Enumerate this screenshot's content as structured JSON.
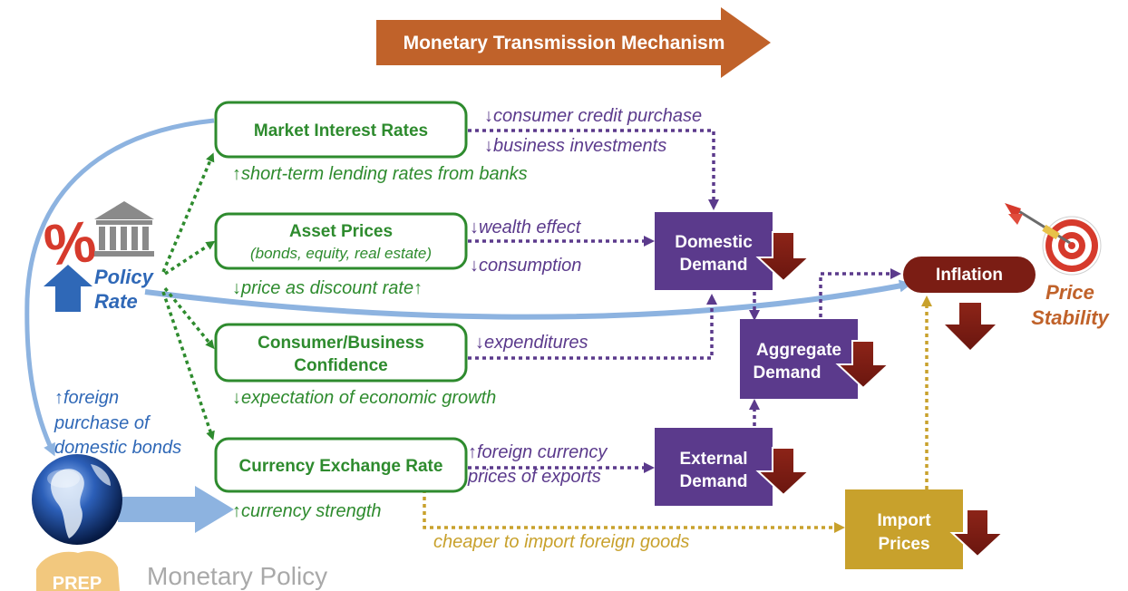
{
  "title": "Monetary Transmission Mechanism",
  "policy": {
    "symbol": "%",
    "line1": "Policy",
    "line2": "Rate"
  },
  "channels": {
    "market_interest": "Market Interest Rates",
    "asset_prices": "Asset Prices",
    "asset_prices_sub": "(bonds, equity, real estate)",
    "confidence_line1": "Consumer/Business",
    "confidence_line2": "Confidence",
    "exchange_rate": "Currency Exchange Rate"
  },
  "green_notes": {
    "lending": "↑short-term lending rates from banks",
    "discount": "↓price as discount rate↑",
    "growth": "↓expectation of economic growth",
    "currency": "↑currency strength"
  },
  "purple_notes": {
    "credit": "↓consumer credit purchase",
    "investments": "↓business investments",
    "wealth": "↓wealth effect",
    "consumption": "↓consumption",
    "expenditures": "↓expenditures",
    "fx_line1": "↑foreign currency",
    "fx_line2": "prices of exports"
  },
  "blue_notes": {
    "line1": "↑foreign",
    "line2": "purchase of",
    "line3": "domestic bonds"
  },
  "gold_note": "cheaper to import foreign goods",
  "demand_boxes": {
    "domestic_line1": "Domestic",
    "domestic_line2": "Demand",
    "aggregate_line1": "Aggregate",
    "aggregate_line2": "Demand",
    "external_line1": "External",
    "external_line2": "Demand",
    "import_line1": "Import",
    "import_line2": "Prices"
  },
  "inflation": "Inflation",
  "price_stability_line1": "Price",
  "price_stability_line2": "Stability",
  "footer": {
    "logo": "PREP",
    "label": "Monetary Policy"
  },
  "colors": {
    "title_arrow": "#c0622a",
    "green": "#2e8b2e",
    "purple": "#5b3a8c",
    "blue": "#2f68b7",
    "gold": "#c8a12c",
    "dark_red": "#7b1d14"
  }
}
